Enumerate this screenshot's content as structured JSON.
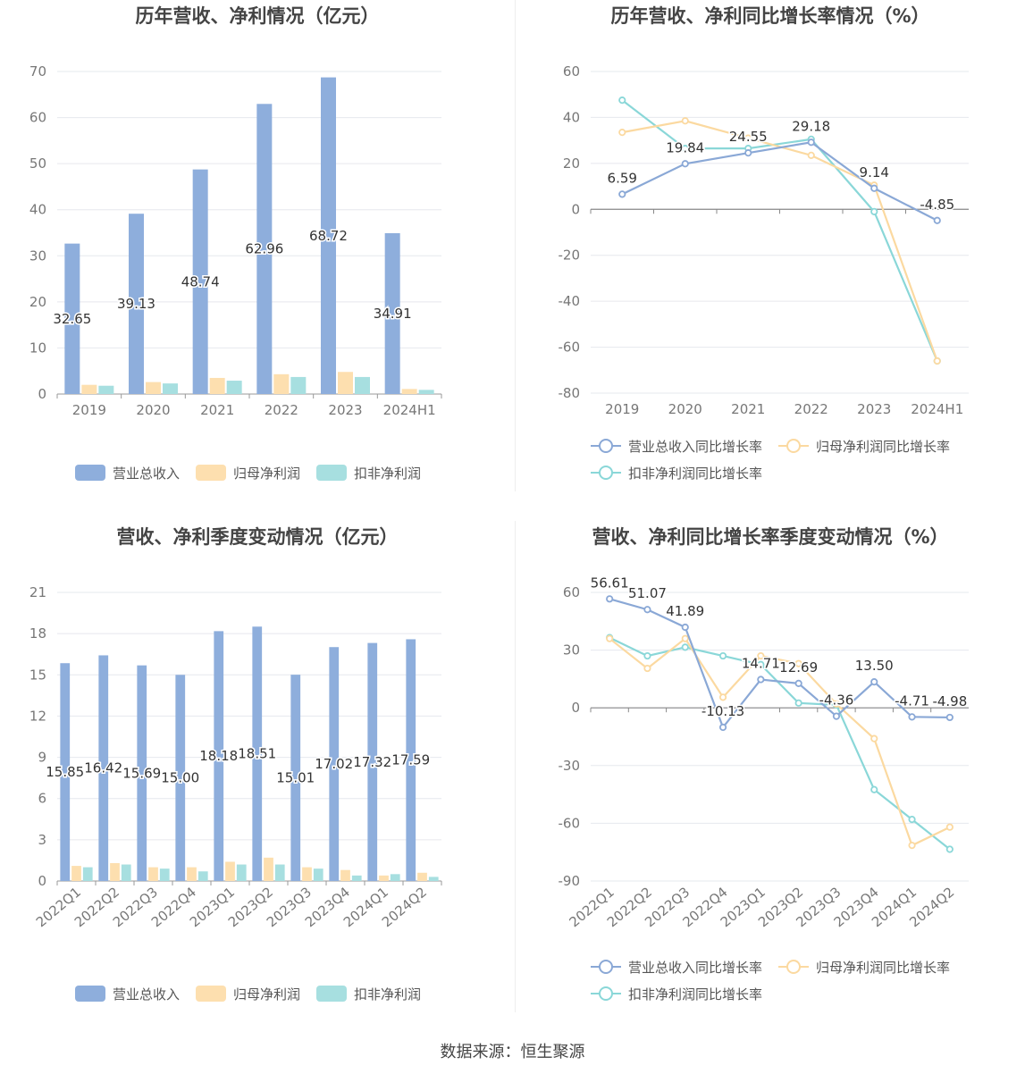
{
  "colors": {
    "revenue": "#8eaedc",
    "net": "#fddfaf",
    "deduct": "#a7dfe0",
    "revenue_line": "#8aa8d6",
    "net_line": "#fbd9a0",
    "deduct_line": "#8ad7d8"
  },
  "legend_bar": [
    "营业总收入",
    "归母净利润",
    "扣非净利润"
  ],
  "legend_line": [
    "营业总收入同比增长率",
    "归母净利润同比增长率",
    "扣非净利润同比增长率"
  ],
  "footer": "数据来源：恒生聚源",
  "chart_data": [
    {
      "id": "annual_bar",
      "type": "bar",
      "title": "历年营收、净利情况（亿元）",
      "categories": [
        "2019",
        "2020",
        "2021",
        "2022",
        "2023",
        "2024H1"
      ],
      "series": [
        {
          "name": "营业总收入",
          "values": [
            32.65,
            39.13,
            48.74,
            62.96,
            68.72,
            34.91
          ]
        },
        {
          "name": "归母净利润",
          "values": [
            2.0,
            2.6,
            3.5,
            4.3,
            4.8,
            1.1
          ]
        },
        {
          "name": "扣非净利润",
          "values": [
            1.8,
            2.3,
            2.9,
            3.7,
            3.7,
            0.9
          ]
        }
      ],
      "value_labels": [
        "32.65",
        "39.13",
        "48.74",
        "62.96",
        "68.72",
        "34.91"
      ],
      "ylim": [
        0,
        70
      ],
      "yticks": [
        0,
        10,
        20,
        30,
        40,
        50,
        60,
        70
      ]
    },
    {
      "id": "annual_line",
      "type": "line",
      "title": "历年营收、净利同比增长率情况（%）",
      "categories": [
        "2019",
        "2020",
        "2021",
        "2022",
        "2023",
        "2024H1"
      ],
      "series": [
        {
          "name": "营业总收入同比增长率",
          "values": [
            6.59,
            19.84,
            24.55,
            29.18,
            9.14,
            -4.85
          ]
        },
        {
          "name": "归母净利润同比增长率",
          "values": [
            33.5,
            38.5,
            31.0,
            23.5,
            10.5,
            -66.0
          ]
        },
        {
          "name": "扣非净利润同比增长率",
          "values": [
            47.5,
            26.5,
            26.5,
            30.5,
            -1.0,
            -66.0
          ]
        }
      ],
      "value_labels": [
        "6.59",
        "19.84",
        "24.55",
        "29.18",
        "9.14",
        "-4.85"
      ],
      "ylim": [
        -80,
        60
      ],
      "yticks": [
        -80,
        -60,
        -40,
        -20,
        0,
        20,
        40,
        60
      ]
    },
    {
      "id": "quarter_bar",
      "type": "bar",
      "title": "营收、净利季度变动情况（亿元）",
      "categories": [
        "2022Q1",
        "2022Q2",
        "2022Q3",
        "2022Q4",
        "2023Q1",
        "2023Q2",
        "2023Q3",
        "2023Q4",
        "2024Q1",
        "2024Q2"
      ],
      "series": [
        {
          "name": "营业总收入",
          "values": [
            15.85,
            16.42,
            15.69,
            15.0,
            18.18,
            18.51,
            15.01,
            17.02,
            17.32,
            17.59
          ]
        },
        {
          "name": "归母净利润",
          "values": [
            1.1,
            1.3,
            1.0,
            1.0,
            1.4,
            1.7,
            1.0,
            0.8,
            0.4,
            0.6
          ]
        },
        {
          "name": "扣非净利润",
          "values": [
            1.0,
            1.2,
            0.9,
            0.7,
            1.2,
            1.2,
            0.9,
            0.4,
            0.5,
            0.3
          ]
        }
      ],
      "value_labels": [
        "15.85",
        "16.42",
        "15.69",
        "15.00",
        "18.18",
        "18.51",
        "15.01",
        "17.02",
        "17.32",
        "17.59"
      ],
      "ylim": [
        0,
        21
      ],
      "yticks": [
        0,
        3,
        6,
        9,
        12,
        15,
        18,
        21
      ]
    },
    {
      "id": "quarter_line",
      "type": "line",
      "title": "营收、净利同比增长率季度变动情况（%）",
      "categories": [
        "2022Q1",
        "2022Q2",
        "2022Q3",
        "2022Q4",
        "2023Q1",
        "2023Q2",
        "2023Q3",
        "2023Q4",
        "2024Q1",
        "2024Q2"
      ],
      "series": [
        {
          "name": "营业总收入同比增长率",
          "values": [
            56.61,
            51.07,
            41.89,
            -10.13,
            14.71,
            12.69,
            -4.36,
            13.5,
            -4.71,
            -4.98
          ]
        },
        {
          "name": "归母净利润同比增长率",
          "values": [
            36,
            20.5,
            36,
            5.5,
            27,
            23,
            2,
            -16,
            -71.5,
            -62
          ]
        },
        {
          "name": "扣非净利润同比增长率",
          "values": [
            36.5,
            27,
            31.5,
            27,
            22.5,
            2.5,
            1.5,
            -42.5,
            -58,
            -73.5
          ]
        }
      ],
      "value_labels": [
        "56.61",
        "51.07",
        "41.89",
        "-10.13",
        "14.71",
        "12.69",
        "-4.36",
        "13.50",
        "-4.71",
        "-4.98"
      ],
      "ylim": [
        -90,
        60
      ],
      "yticks": [
        -90,
        -60,
        -30,
        0,
        30,
        60
      ]
    }
  ]
}
